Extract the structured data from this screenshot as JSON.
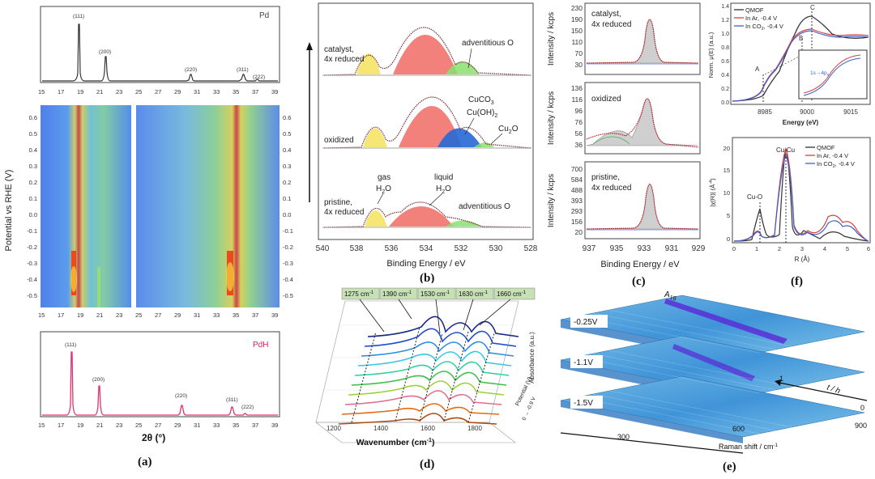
{
  "figure": {
    "panel_a": {
      "label": "(a)",
      "top_title": "Pd",
      "bottom_title": "PdH",
      "xlabel": "2θ (°)",
      "ylabel_left": "Potential vs RHE (V)",
      "x_ticks": [
        "15",
        "17",
        "19",
        "21",
        "23",
        "25",
        "27",
        "29",
        "31",
        "33",
        "35",
        "37",
        "39"
      ],
      "y_ticks": [
        "0.6",
        "0.5",
        "0.4",
        "0.3",
        "0.2",
        "0.1",
        "0.0",
        "-0.1",
        "-0.2",
        "-0.3",
        "-0.4",
        "-0.5"
      ],
      "pd_peaks": [
        "(111)",
        "(200)",
        "(220)",
        "(311)",
        "(222)"
      ],
      "pdh_peaks": [
        "(111)",
        "(200)",
        "(220)",
        "(311)",
        "(222)"
      ]
    },
    "panel_b": {
      "label": "(b)",
      "xlabel": "Binding Energy / eV",
      "x_ticks": [
        "540",
        "538",
        "536",
        "534",
        "532",
        "530",
        "528"
      ],
      "spectra": [
        {
          "label_1": "catalyst,",
          "label_2": "4x reduced",
          "annotation": "adventitious O"
        },
        {
          "label_1": "oxidized",
          "ann_1": "CuCO",
          "ann_1_sub": "3",
          "ann_2": "Cu(OH)",
          "ann_2_sub": "2",
          "ann_3": "Cu",
          "ann_3_sub": "2",
          "ann_3_end": "O"
        },
        {
          "label_1": "pristine,",
          "label_2": "4x reduced",
          "gas_1": "gas",
          "gas_2": "H",
          "gas_2_sub": "2",
          "gas_2_end": "O",
          "liq_1": "liquid",
          "liq_2": "H",
          "liq_2_sub": "2",
          "liq_2_end": "O",
          "annotation": "adventitious O"
        }
      ]
    },
    "panel_c": {
      "label": "(c)",
      "xlabel": "Binding Energy / eV",
      "ylabel": "Intensity / kcps",
      "x_ticks": [
        "937",
        "935",
        "933",
        "931",
        "929"
      ],
      "spectra": [
        {
          "title_1": "catalyst,",
          "title_2": "4x reduced",
          "y_ticks": [
            "230",
            "190",
            "150",
            "110",
            "70",
            "30"
          ]
        },
        {
          "title_1": "oxidized",
          "y_ticks": [
            "136",
            "116",
            "96",
            "76",
            "56",
            "36"
          ]
        },
        {
          "title_1": "pristine,",
          "title_2": "4x reduced",
          "y_ticks": [
            "700",
            "584",
            "488",
            "393",
            "293",
            "156",
            "20"
          ]
        }
      ]
    },
    "panel_d": {
      "label": "(d)",
      "xlabel": "Wavenumber (cm",
      "xlabel_sup": "-1",
      "xlabel_end": ")",
      "ylabel": "Absorbance (a.u.)",
      "depth_label": "Potential (V)",
      "depth_range": "0 → -0.9 V",
      "x_ticks": [
        "1200",
        "1400",
        "1600",
        "1800"
      ],
      "bands": [
        "1275 cm",
        "1390 cm",
        "1530 cm",
        "1630 cm",
        "1660 cm"
      ],
      "band_sup": "-1"
    },
    "panel_e": {
      "label": "(e)",
      "xlabel": "Raman shift / cm",
      "xlabel_sup": "-1",
      "x_ticks": [
        "300",
        "600",
        "900"
      ],
      "peak": "A",
      "peak_sub": "1g",
      "potentials": [
        "-0.25V",
        "-1.1V",
        "-1.5V"
      ],
      "time_axis": "t / h",
      "time_ticks": [
        "1",
        "0"
      ]
    },
    "panel_f": {
      "label": "(f)",
      "xanes": {
        "ylabel": "Norm. μ(E) (a.u.)",
        "xlabel": "Energy (eV)",
        "x_ticks": [
          "8985",
          "9000",
          "9015"
        ],
        "y_ticks": [
          "1.4",
          "1.2",
          "1.0",
          "0.8",
          "0.6",
          "0.4",
          "0.2",
          "0.0"
        ],
        "legend": [
          "QMOF",
          "In Ar, -0.4 V",
          "In CO",
          "2",
          ", -0.4 V"
        ],
        "points": [
          "A",
          "B",
          "C"
        ],
        "inset": "1s→4p",
        "inset_sub": "x"
      },
      "exafs": {
        "ylabel": "|χ(R)| (Å",
        "ylabel_sup": "-4",
        "ylabel_end": ")",
        "xlabel": "R (Å)",
        "x_ticks": [
          "0",
          "1",
          "2",
          "3",
          "4",
          "5",
          "6"
        ],
        "y_ticks": [
          "20",
          "15",
          "10",
          "5",
          "0"
        ],
        "legend": [
          "QMOF",
          "In Ar, -0.4 V",
          "In CO",
          "2",
          ", -0.4 V"
        ],
        "cu_cu": "Cu-Cu",
        "cu_o": "Cu-O"
      }
    }
  }
}
